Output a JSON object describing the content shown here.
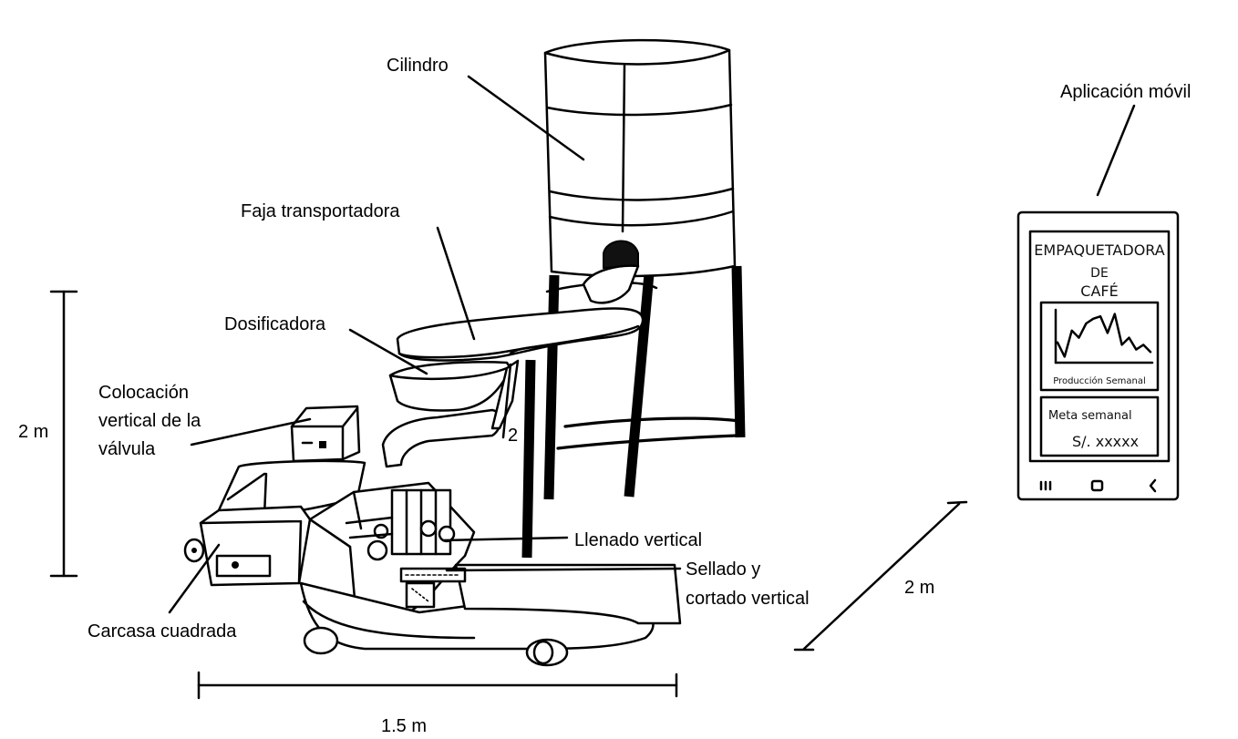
{
  "labels": {
    "cylinder": "Cilindro",
    "conveyor": "Faja transportadora",
    "doser": "Dosificadora",
    "valve_line1": "Colocación",
    "valve_line2": "vertical de la",
    "valve_line3": "válvula",
    "vertical_fill": "Llenado vertical",
    "seal_line1": "Sellado y",
    "seal_line2": "cortado vertical",
    "housing": "Carcasa cuadrada",
    "mobile_app": "Aplicación móvil",
    "stray_mark": "2"
  },
  "dimensions": {
    "height": "2 m",
    "width": "1.5 m",
    "depth": "2 m"
  },
  "phone": {
    "title_line1": "EMPAQUETADORA",
    "title_line2": "DE",
    "title_line3": "CAFÉ",
    "chart_caption": "Producción Semanal",
    "goal_title": "Meta semanal",
    "goal_value": "S/. xxxxx",
    "nav_menu_icon": "menu-lines-icon",
    "nav_home_icon": "home-square-icon",
    "nav_back_icon": "back-chevron-icon",
    "chart_values": [
      0.35,
      0.05,
      0.6,
      0.45,
      0.75,
      0.85,
      0.9,
      0.55,
      0.95,
      0.3,
      0.45,
      0.2,
      0.3,
      0.15
    ]
  },
  "colors": {
    "ink": "#000000",
    "paper": "#ffffff"
  }
}
